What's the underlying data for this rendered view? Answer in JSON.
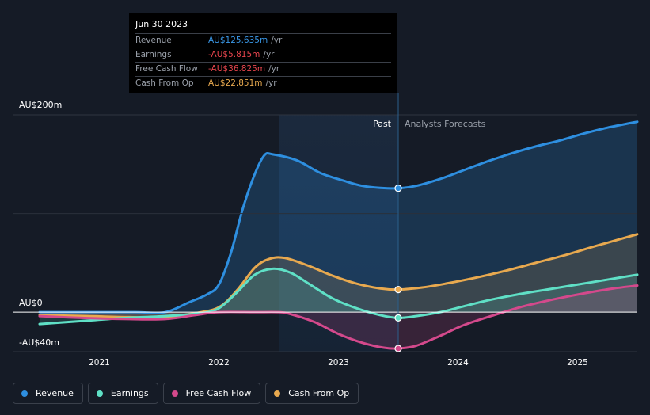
{
  "tooltip": {
    "date": "Jun 30 2023",
    "rows": [
      {
        "label": "Revenue",
        "value": "AU$125.635m",
        "unit": "/yr",
        "color": "#3a97e6"
      },
      {
        "label": "Earnings",
        "value": "-AU$5.815m",
        "unit": "/yr",
        "color": "#e8454d"
      },
      {
        "label": "Free Cash Flow",
        "value": "-AU$36.825m",
        "unit": "/yr",
        "color": "#e8454d"
      },
      {
        "label": "Cash From Op",
        "value": "AU$22.851m",
        "unit": "/yr",
        "color": "#e8a94f"
      }
    ]
  },
  "legend": [
    {
      "label": "Revenue",
      "color": "#2e8fe0"
    },
    {
      "label": "Earnings",
      "color": "#5fe0c6"
    },
    {
      "label": "Free Cash Flow",
      "color": "#d4498c"
    },
    {
      "label": "Cash From Op",
      "color": "#e8a94f"
    }
  ],
  "chart_data": {
    "type": "line",
    "y_labels": {
      "top": "AU$200m",
      "zero": "AU$0",
      "bottom": "-AU$40m"
    },
    "ylim": [
      -40,
      200
    ],
    "xlim": [
      2020.5,
      2025.5
    ],
    "x_ticks": [
      2021,
      2022,
      2023,
      2024,
      2025
    ],
    "past_label": "Past",
    "forecast_label": "Analysts Forecasts",
    "past_start_x": 2022.5,
    "divider_x": 2023.5,
    "series": [
      {
        "name": "Revenue",
        "color": "#2e8fe0",
        "marker_x": 2023.5,
        "points": [
          [
            2020.5,
            0
          ],
          [
            2021.0,
            0
          ],
          [
            2021.3,
            0
          ],
          [
            2021.55,
            0
          ],
          [
            2021.75,
            10
          ],
          [
            2021.9,
            18
          ],
          [
            2022.0,
            28
          ],
          [
            2022.1,
            60
          ],
          [
            2022.2,
            105
          ],
          [
            2022.3,
            140
          ],
          [
            2022.38,
            159
          ],
          [
            2022.45,
            160
          ],
          [
            2022.65,
            154
          ],
          [
            2022.85,
            141
          ],
          [
            2023.05,
            133
          ],
          [
            2023.2,
            128
          ],
          [
            2023.35,
            126
          ],
          [
            2023.5,
            125.6
          ],
          [
            2023.65,
            128
          ],
          [
            2023.85,
            135
          ],
          [
            2024.05,
            144
          ],
          [
            2024.25,
            153
          ],
          [
            2024.45,
            161
          ],
          [
            2024.65,
            168
          ],
          [
            2024.85,
            174
          ],
          [
            2025.05,
            181
          ],
          [
            2025.25,
            187
          ],
          [
            2025.5,
            193
          ]
        ]
      },
      {
        "name": "Earnings",
        "color": "#5fe0c6",
        "marker_x": 2023.5,
        "points": [
          [
            2020.5,
            -12
          ],
          [
            2020.85,
            -9
          ],
          [
            2021.2,
            -6
          ],
          [
            2021.55,
            -4
          ],
          [
            2021.85,
            -1
          ],
          [
            2022.0,
            4
          ],
          [
            2022.15,
            20
          ],
          [
            2022.3,
            38
          ],
          [
            2022.45,
            44
          ],
          [
            2022.6,
            40
          ],
          [
            2022.75,
            29
          ],
          [
            2022.95,
            14
          ],
          [
            2023.15,
            4
          ],
          [
            2023.35,
            -3
          ],
          [
            2023.5,
            -5.8
          ],
          [
            2023.65,
            -4
          ],
          [
            2023.85,
            0
          ],
          [
            2024.05,
            6
          ],
          [
            2024.25,
            12
          ],
          [
            2024.5,
            18
          ],
          [
            2024.75,
            23
          ],
          [
            2025.0,
            28
          ],
          [
            2025.25,
            33
          ],
          [
            2025.5,
            38
          ]
        ]
      },
      {
        "name": "Free Cash Flow",
        "color": "#d4498c",
        "marker_x": 2023.5,
        "points": [
          [
            2020.5,
            -4
          ],
          [
            2020.9,
            -6
          ],
          [
            2021.25,
            -7
          ],
          [
            2021.55,
            -7
          ],
          [
            2021.8,
            -3
          ],
          [
            2022.0,
            0
          ],
          [
            2022.3,
            0
          ],
          [
            2022.5,
            0
          ],
          [
            2022.6,
            -2
          ],
          [
            2022.8,
            -10
          ],
          [
            2023.0,
            -22
          ],
          [
            2023.2,
            -31
          ],
          [
            2023.38,
            -36
          ],
          [
            2023.5,
            -36.8
          ],
          [
            2023.65,
            -34
          ],
          [
            2023.85,
            -24
          ],
          [
            2024.05,
            -13
          ],
          [
            2024.3,
            -3
          ],
          [
            2024.55,
            6
          ],
          [
            2024.8,
            13
          ],
          [
            2025.05,
            19
          ],
          [
            2025.3,
            24
          ],
          [
            2025.5,
            27
          ]
        ]
      },
      {
        "name": "Cash From Op",
        "color": "#e8a94f",
        "marker_x": 2023.5,
        "points": [
          [
            2020.5,
            -3
          ],
          [
            2020.9,
            -4
          ],
          [
            2021.25,
            -5
          ],
          [
            2021.55,
            -5
          ],
          [
            2021.8,
            -1
          ],
          [
            2022.0,
            5
          ],
          [
            2022.15,
            22
          ],
          [
            2022.3,
            45
          ],
          [
            2022.42,
            54
          ],
          [
            2022.55,
            55
          ],
          [
            2022.75,
            47
          ],
          [
            2022.95,
            37
          ],
          [
            2023.15,
            29
          ],
          [
            2023.35,
            24
          ],
          [
            2023.5,
            22.9
          ],
          [
            2023.7,
            25
          ],
          [
            2023.9,
            29
          ],
          [
            2024.15,
            35
          ],
          [
            2024.4,
            42
          ],
          [
            2024.65,
            50
          ],
          [
            2024.9,
            58
          ],
          [
            2025.15,
            67
          ],
          [
            2025.5,
            79
          ]
        ]
      }
    ]
  }
}
